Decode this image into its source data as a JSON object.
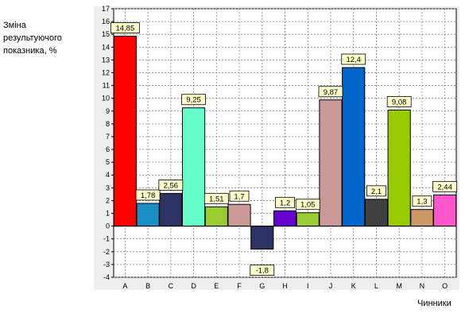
{
  "chart_data": {
    "type": "bar",
    "ylabel": "Зміна\nрезультуючого\nпоказника, %",
    "xlabel": "Чинники",
    "ylim": [
      -4,
      17
    ],
    "yticks": [
      -4,
      -3,
      -2,
      -1,
      0,
      1,
      2,
      3,
      4,
      5,
      6,
      7,
      8,
      9,
      10,
      11,
      12,
      13,
      14,
      15,
      16,
      17
    ],
    "grid": true,
    "categories": [
      "A",
      "B",
      "C",
      "D",
      "E",
      "F",
      "G",
      "H",
      "I",
      "J",
      "K",
      "L",
      "M",
      "N",
      "O"
    ],
    "values": [
      14.85,
      1.78,
      2.56,
      9.25,
      1.51,
      1.7,
      -1.8,
      1.2,
      1.05,
      9.87,
      12.4,
      2.1,
      9.08,
      1.3,
      2.44
    ],
    "data_labels": [
      "14,85",
      "1,78",
      "2,56",
      "9,25",
      "1,51",
      "1,7",
      "-1,8",
      "1,2",
      "1,05",
      "9,87",
      "12,4",
      "2,1",
      "9,08",
      "1,3",
      "2,44"
    ],
    "colors": [
      "#ff0000",
      "#1a8fc6",
      "#2d3163",
      "#66ffcc",
      "#99cc33",
      "#cc9999",
      "#2d3163",
      "#6600cc",
      "#99cc33",
      "#cc9999",
      "#0066cc",
      "#404040",
      "#99cc00",
      "#cc9966",
      "#ff55cc"
    ],
    "label_box_color": "#ffffcc"
  }
}
